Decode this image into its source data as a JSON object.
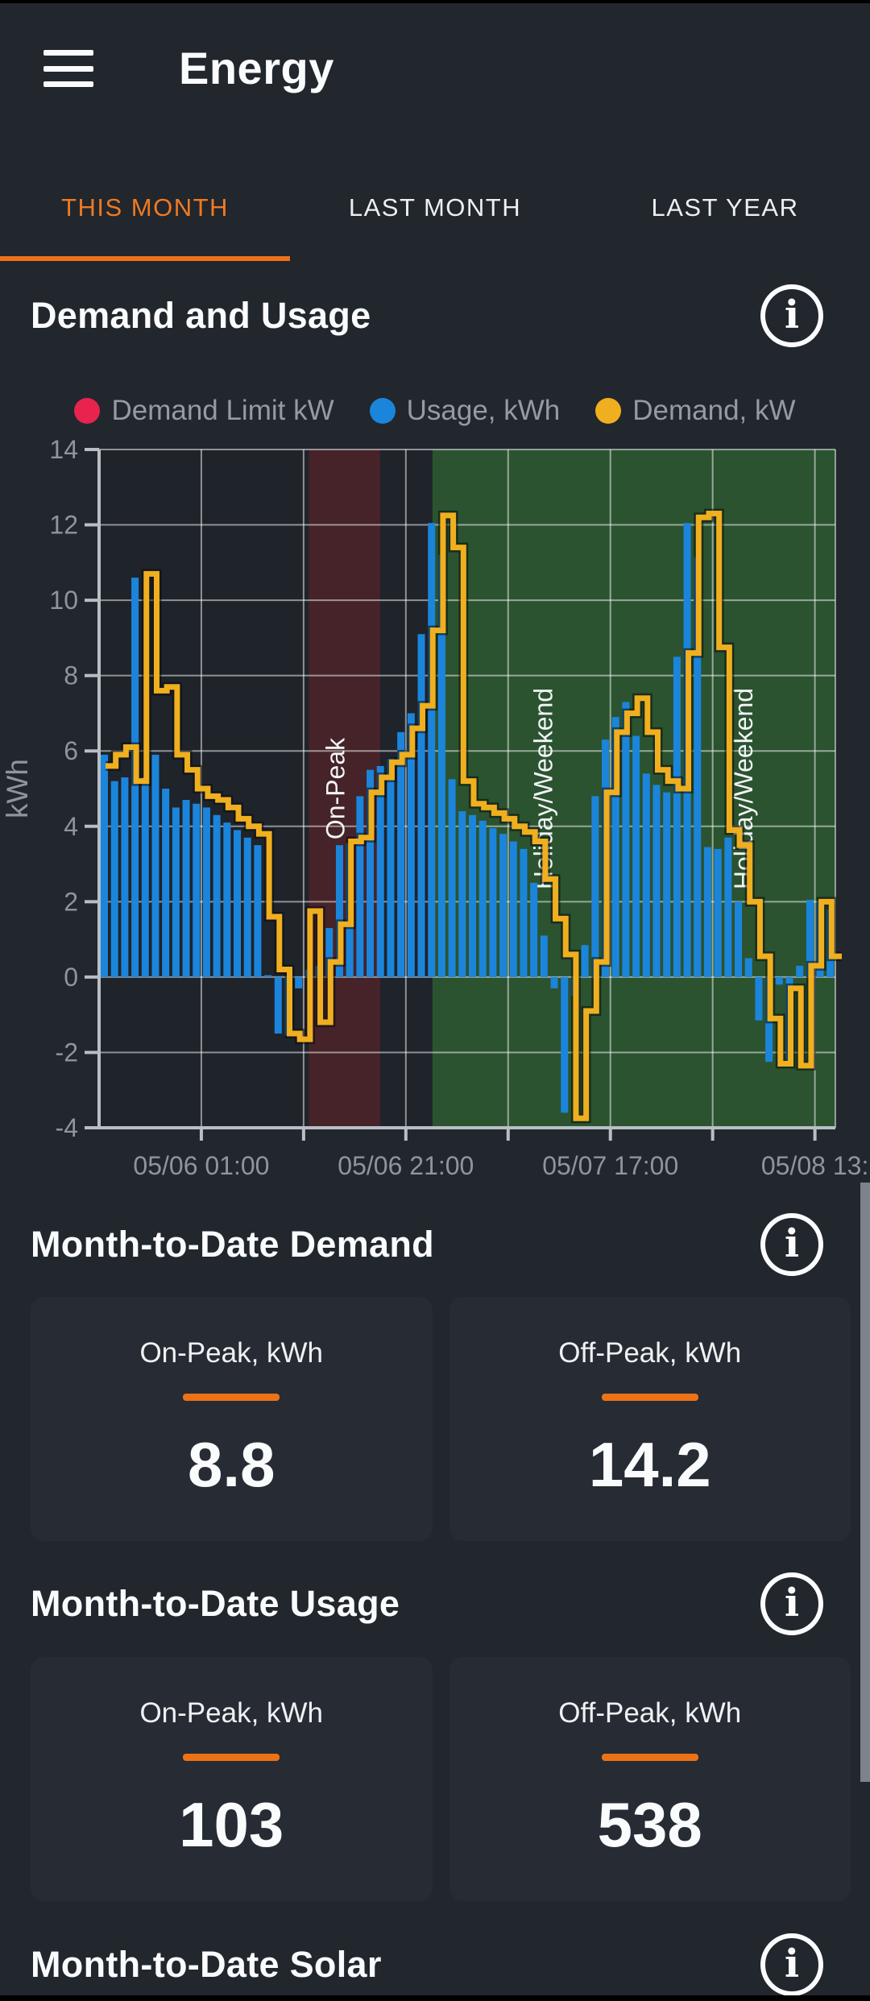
{
  "theme": {
    "background": "#22262D",
    "card": "#272B33",
    "accent_orange": "#EC7218",
    "tab_active": "#EE7A23",
    "heading_text": "#FAFBFD",
    "muted_text": "#959BA3"
  },
  "icons": {
    "info_glyph": "i",
    "hamburger": "menu-icon"
  },
  "header": {
    "title": "Energy"
  },
  "tabs": [
    {
      "label": "THIS MONTH",
      "active": true
    },
    {
      "label": "LAST MONTH",
      "active": false
    },
    {
      "label": "LAST YEAR",
      "active": false
    }
  ],
  "sections": {
    "demand_usage": {
      "heading": "Demand and Usage",
      "legend": [
        {
          "label": "Demand Limit kW",
          "color": "#E7234E"
        },
        {
          "label": "Usage, kWh",
          "color": "#1B85DB"
        },
        {
          "label": "Demand, kW",
          "color": "#F0AF1E"
        }
      ],
      "chart_data": {
        "type": "bar+step-line",
        "title": "Demand and Usage",
        "ylabel": "kWh",
        "ylim": [
          -4,
          14
        ],
        "y_tick_step": 2,
        "grid": true,
        "x_unit": "hour",
        "x_start": "05/05 15:00",
        "series_length": 72,
        "x_ticks": [
          {
            "hour": 10,
            "label": "05/06 01:00"
          },
          {
            "hour": 20
          },
          {
            "hour": 30,
            "label": "05/06 21:00"
          },
          {
            "hour": 40
          },
          {
            "hour": 50,
            "label": "05/07 17:00"
          },
          {
            "hour": 60
          },
          {
            "hour": 70,
            "label": "05/08 13:"
          }
        ],
        "regions": [
          {
            "name": "on-peak",
            "color": "#452329",
            "start_hour": 20.5,
            "end_hour": 27.5,
            "labels": [
              {
                "text": "On-Peak",
                "hour": 24
              }
            ]
          },
          {
            "name": "weekend",
            "color": "#2B5330",
            "start_hour": 32.6,
            "end_hour": 72,
            "labels": [
              {
                "text": "Holiday/Weekend",
                "hour": 44.3
              },
              {
                "text": "Holiday/Weekend",
                "hour": 63.9
              }
            ]
          }
        ],
        "series": [
          {
            "name": "Demand Limit kW",
            "type": "line",
            "color": "#E7234E",
            "values": []
          },
          {
            "name": "Usage, kWh",
            "type": "bar",
            "color": "#1B85DB",
            "values": [
              5.9,
              5.2,
              5.3,
              10.6,
              5.3,
              5.9,
              5.0,
              4.5,
              4.7,
              4.6,
              4.5,
              4.3,
              4.1,
              3.9,
              3.7,
              3.5,
              0.05,
              -1.5,
              -1.55,
              -0.3,
              0.2,
              0.3,
              1.3,
              3.5,
              3.55,
              4.8,
              5.5,
              5.6,
              5.8,
              6.5,
              7.0,
              9.1,
              12.05,
              11.2,
              5.25,
              4.4,
              4.3,
              4.15,
              3.95,
              3.8,
              3.6,
              3.4,
              2.5,
              1.1,
              -0.3,
              -3.6,
              -0.5,
              0.85,
              4.8,
              6.3,
              6.9,
              7.3,
              6.4,
              5.4,
              5.1,
              4.9,
              8.5,
              12.05,
              11.15,
              3.45,
              3.4,
              3.7,
              2.0,
              0.5,
              -1.15,
              -2.25,
              -0.2,
              -2.3,
              0.3,
              2.05,
              2.0,
              1.8
            ]
          },
          {
            "name": "Demand, kW",
            "type": "step-line",
            "color": "#F0AF1E",
            "values": [
              5.6,
              5.9,
              6.1,
              5.2,
              10.7,
              7.6,
              7.7,
              5.9,
              5.5,
              5.0,
              4.8,
              4.7,
              4.5,
              4.2,
              4.0,
              3.8,
              1.6,
              0.2,
              -1.5,
              -1.65,
              1.75,
              -1.2,
              0.4,
              1.4,
              3.6,
              3.7,
              4.9,
              5.3,
              5.7,
              5.9,
              6.6,
              7.2,
              9.2,
              12.25,
              11.4,
              5.2,
              4.6,
              4.5,
              4.35,
              4.2,
              4.0,
              3.85,
              3.6,
              2.6,
              1.55,
              0.6,
              -3.75,
              -0.9,
              0.4,
              4.9,
              6.5,
              7.0,
              7.4,
              6.5,
              5.5,
              5.2,
              5.0,
              8.6,
              12.2,
              12.3,
              8.75,
              3.9,
              3.5,
              2.0,
              0.55,
              -1.1,
              -2.3,
              -0.3,
              -2.35,
              0.3,
              2.0,
              0.55
            ]
          }
        ],
        "colors": {
          "plot_bg": "#1F232A",
          "grid": "rgba(255,255,255,0.5)",
          "axis": "#B9BEC4",
          "tick_text": "#8F959D",
          "region_label": "#F2F4F6"
        }
      }
    },
    "mtd_demand": {
      "heading": "Month-to-Date Demand",
      "cards": [
        {
          "label": "On-Peak, kWh",
          "value": "8.8"
        },
        {
          "label": "Off-Peak, kWh",
          "value": "14.2"
        }
      ]
    },
    "mtd_usage": {
      "heading": "Month-to-Date Usage",
      "cards": [
        {
          "label": "On-Peak, kWh",
          "value": "103"
        },
        {
          "label": "Off-Peak, kWh",
          "value": "538"
        }
      ]
    },
    "mtd_solar": {
      "heading": "Month-to-Date Solar"
    }
  }
}
